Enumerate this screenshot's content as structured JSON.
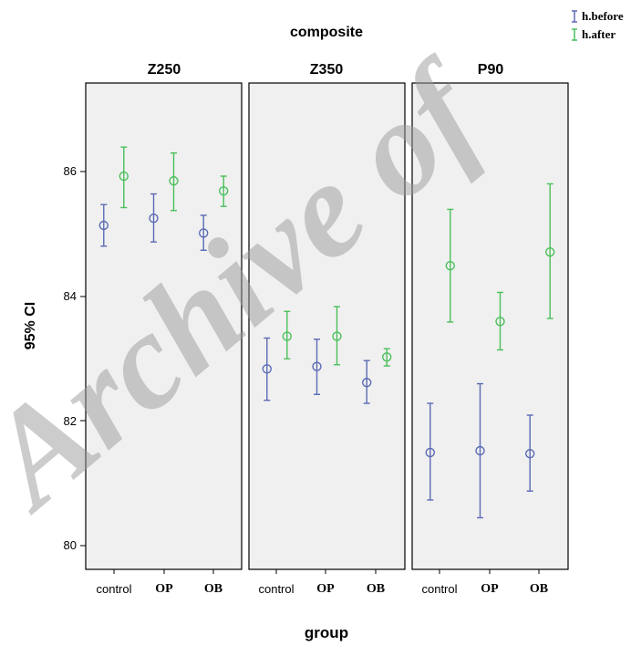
{
  "chart_data": {
    "type": "errorbar",
    "title": "composite",
    "xlabel": "group",
    "ylabel": "95% CI",
    "ylim": [
      79.6,
      87.8
    ],
    "yticks": [
      80,
      82,
      84,
      86
    ],
    "categories": [
      "control",
      "OP",
      "OB"
    ],
    "legend_position": "top-right",
    "colors": {
      "h.before": "#5a6ab4",
      "h.after": "#4bbf5a",
      "panel_bg": "#f0f0f0"
    },
    "series": [
      {
        "name": "h.before",
        "key": "before"
      },
      {
        "name": "h.after",
        "key": "after"
      }
    ],
    "panels": [
      {
        "name": "Z250",
        "points": [
          {
            "category": "control",
            "before": {
              "mean": 85.4,
              "lower": 85.05,
              "upper": 85.75
            },
            "after": {
              "mean": 86.23,
              "lower": 85.7,
              "upper": 86.72
            }
          },
          {
            "category": "OP",
            "before": {
              "mean": 85.52,
              "lower": 85.12,
              "upper": 85.93
            },
            "after": {
              "mean": 86.15,
              "lower": 85.65,
              "upper": 86.62
            }
          },
          {
            "category": "OB",
            "before": {
              "mean": 85.27,
              "lower": 84.98,
              "upper": 85.57
            },
            "after": {
              "mean": 85.98,
              "lower": 85.72,
              "upper": 86.23
            }
          }
        ]
      },
      {
        "name": "Z350",
        "points": [
          {
            "category": "control",
            "before": {
              "mean": 82.98,
              "lower": 82.45,
              "upper": 83.5
            },
            "after": {
              "mean": 83.53,
              "lower": 83.15,
              "upper": 83.95
            }
          },
          {
            "category": "OP",
            "before": {
              "mean": 83.02,
              "lower": 82.55,
              "upper": 83.48
            },
            "after": {
              "mean": 83.53,
              "lower": 83.05,
              "upper": 84.03
            }
          },
          {
            "category": "OB",
            "before": {
              "mean": 82.75,
              "lower": 82.4,
              "upper": 83.12
            },
            "after": {
              "mean": 83.18,
              "lower": 83.03,
              "upper": 83.32
            }
          }
        ]
      },
      {
        "name": "P90",
        "points": [
          {
            "category": "control",
            "before": {
              "mean": 81.57,
              "lower": 80.77,
              "upper": 82.4
            },
            "after": {
              "mean": 84.72,
              "lower": 83.77,
              "upper": 85.67
            }
          },
          {
            "category": "OP",
            "before": {
              "mean": 81.6,
              "lower": 80.47,
              "upper": 82.73
            },
            "after": {
              "mean": 83.78,
              "lower": 83.3,
              "upper": 84.27
            }
          },
          {
            "category": "OB",
            "before": {
              "mean": 81.55,
              "lower": 80.92,
              "upper": 82.2
            },
            "after": {
              "mean": 84.95,
              "lower": 83.83,
              "upper": 86.1
            }
          }
        ]
      }
    ]
  },
  "watermark": "Archive of"
}
